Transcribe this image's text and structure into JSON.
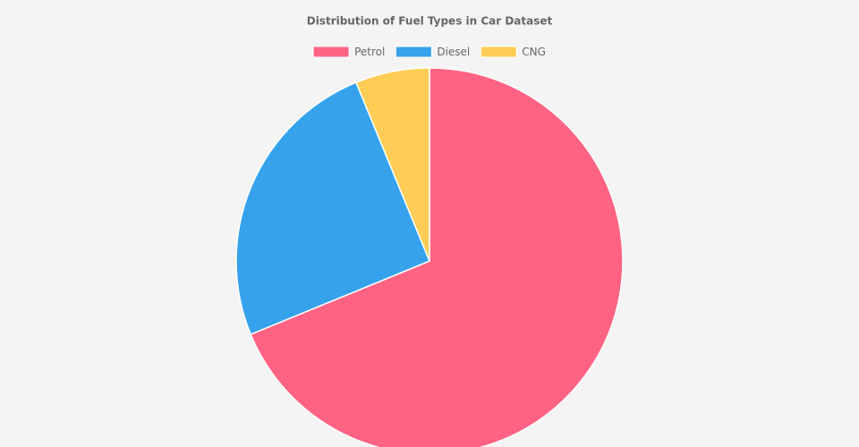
{
  "chart_data": {
    "type": "pie",
    "title": "Distribution of Fuel Types in Car Dataset",
    "categories": [
      "Petrol",
      "Diesel",
      "CNG"
    ],
    "values": [
      68.8,
      25,
      6.2
    ],
    "colors": [
      "#ff6384",
      "#36a2eb",
      "#ffcd56"
    ],
    "legend": "top"
  }
}
